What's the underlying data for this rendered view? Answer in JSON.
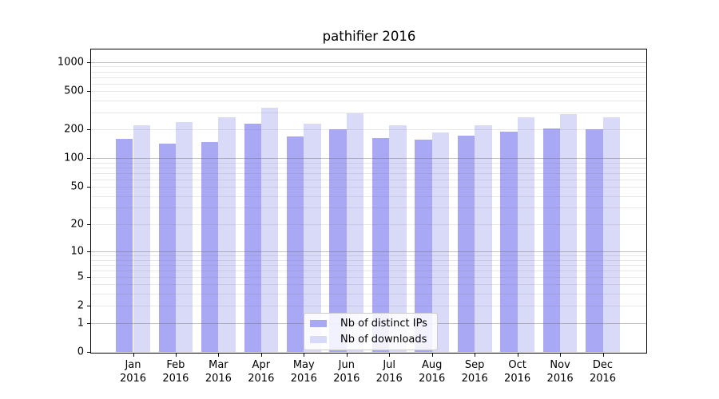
{
  "chart_data": {
    "type": "bar",
    "title": "pathifier 2016",
    "scale": "log1p",
    "categories": [
      "Jan",
      "Feb",
      "Mar",
      "Apr",
      "May",
      "Jun",
      "Jul",
      "Aug",
      "Sep",
      "Oct",
      "Nov",
      "Dec"
    ],
    "year": "2016",
    "series": [
      {
        "name": "Nb of distinct IPs",
        "color": "#a8a8f5",
        "values": [
          160,
          142,
          148,
          228,
          170,
          199,
          164,
          158,
          172,
          191,
          203,
          202
        ]
      },
      {
        "name": "Nb of downloads",
        "color": "#d9d9f8",
        "values": [
          220,
          238,
          268,
          335,
          228,
          295,
          221,
          187,
          219,
          265,
          286,
          268
        ]
      }
    ],
    "y_ticks": [
      0,
      1,
      2,
      5,
      10,
      20,
      50,
      100,
      200,
      500,
      1000
    ],
    "ylim": [
      0,
      1375
    ],
    "xlim": [
      -1,
      12
    ],
    "bar_width_units": 0.4,
    "grid": "both",
    "legend_position": "lower center"
  }
}
